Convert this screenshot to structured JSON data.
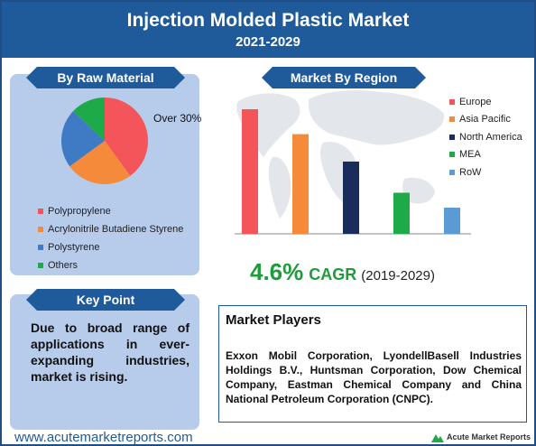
{
  "header": {
    "title": "Injection Molded Plastic Market",
    "subtitle": "2021-2029"
  },
  "raw_material": {
    "heading": "By Raw Material",
    "pie_label": "Over 30%"
  },
  "key_point": {
    "heading": "Key Point",
    "text": "Due to broad range of applications in ever-expanding industries, market is rising."
  },
  "region": {
    "heading": "Market By Region"
  },
  "cagr": {
    "value": "4.6%",
    "label": "CAGR",
    "period": "(2019-2029)"
  },
  "players": {
    "title": "Market Players",
    "text": "Exxon Mobil Corporation, LyondellBasell Industries Holdings B.V., Huntsman Corporation, Dow Chemical Company, Eastman Chemical Company and China National Petroleum Corporation (CNPC)."
  },
  "footer": {
    "url": "www.acutemarketreports.com",
    "logo_text": "Acute Market Reports"
  },
  "colors": {
    "red": "#f4555a",
    "orange": "#f58a3a",
    "navy": "#1a2d5a",
    "green": "#1faa4a",
    "blue": "#5b9bd5",
    "brand": "#1f5b9b"
  },
  "chart_data": [
    {
      "type": "pie",
      "title": "By Raw Material",
      "categories": [
        "Polypropylene",
        "Acrylonitrile Butadiene Styrene",
        "Polystyrene",
        "Others"
      ],
      "values": [
        40,
        25,
        22,
        13
      ],
      "colors": [
        "#f4555a",
        "#f58a3a",
        "#3f7ac4",
        "#1faa4a"
      ],
      "annotations": [
        "Over 30%"
      ]
    },
    {
      "type": "bar",
      "title": "Market By Region",
      "categories": [
        "Europe",
        "Asia Pacific",
        "North America",
        "MEA",
        "RoW"
      ],
      "values": [
        100,
        80,
        58,
        33,
        21
      ],
      "colors": [
        "#f4555a",
        "#f58a3a",
        "#1a2d5a",
        "#1faa4a",
        "#5b9bd5"
      ],
      "ylim": [
        0,
        100
      ],
      "grid": false,
      "legend": "right"
    }
  ]
}
